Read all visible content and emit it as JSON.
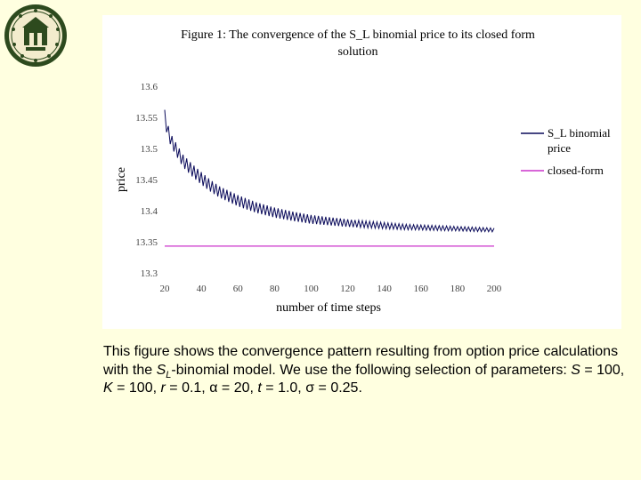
{
  "chart_data": {
    "type": "line",
    "title_line1": "Figure 1: The convergence of the S_L binomial price to its closed form",
    "title_line2": "solution",
    "xlabel": "number of time steps",
    "ylabel": "price",
    "xlim": [
      20,
      200
    ],
    "ylim": [
      13.3,
      13.6
    ],
    "x_ticks": [
      "20",
      "40",
      "60",
      "80",
      "100",
      "120",
      "140",
      "160",
      "180",
      "200"
    ],
    "y_ticks": [
      "13.6",
      "13.55",
      "13.5",
      "13.45",
      "13.4",
      "13.35",
      "13.3"
    ],
    "grid": false,
    "legend_position": "right",
    "series": [
      {
        "name_line1": "S_L binomial",
        "name_line2": "price",
        "color": "#0a0a5a",
        "x": [
          20,
          22,
          24,
          26,
          28,
          30,
          35,
          40,
          45,
          50,
          55,
          60,
          70,
          80,
          90,
          100,
          110,
          120,
          130,
          140,
          150,
          160,
          170,
          180,
          190,
          200
        ],
        "y": [
          13.55,
          13.525,
          13.51,
          13.5,
          13.49,
          13.48,
          13.465,
          13.452,
          13.44,
          13.43,
          13.423,
          13.416,
          13.405,
          13.397,
          13.391,
          13.386,
          13.383,
          13.38,
          13.378,
          13.376,
          13.374,
          13.373,
          13.372,
          13.371,
          13.37,
          13.369
        ],
        "oscillation_amplitude": [
          0.012,
          0.011,
          0.01,
          0.01,
          0.01,
          0.01,
          0.01,
          0.01,
          0.0095,
          0.009,
          0.009,
          0.009,
          0.0085,
          0.008,
          0.0075,
          0.007,
          0.0065,
          0.006,
          0.0055,
          0.005,
          0.0045,
          0.004,
          0.004,
          0.0035,
          0.0035,
          0.003
        ]
      },
      {
        "name": "closed-form",
        "color": "#cc33cc",
        "x": [
          20,
          200
        ],
        "y": [
          13.343,
          13.343
        ]
      }
    ]
  },
  "caption": {
    "text_1": "This figure shows the convergence pattern resulting from option price calculations with the ",
    "s_symbol": "S",
    "s_subscript": "L",
    "text_2": "-binomial model. We use the following selection of parameters: ",
    "p1_sym": "S",
    "p1_val": " = 100, ",
    "p2_sym": "K",
    "p2_val": " = 100, ",
    "p3_sym": "r",
    "p3_val": " = 0.1, ",
    "p4_sym": "α",
    "p4_val": " = 20, ",
    "p5_sym": "t",
    "p5_val": " = 1.0, ",
    "p6_sym": "σ",
    "p6_val": " = 0.25."
  },
  "logo": {
    "icon": "university-seal-icon",
    "primary_color": "#2d4a1e",
    "accent_color": "#f3eccd"
  }
}
